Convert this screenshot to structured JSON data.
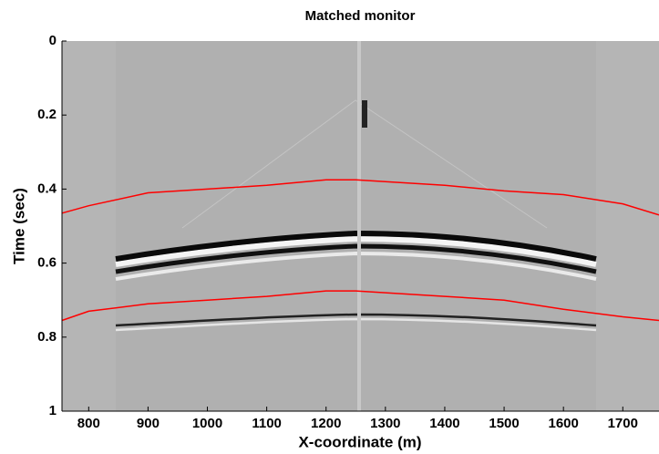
{
  "chart_data": {
    "type": "seismic-section",
    "title": "Matched monitor",
    "x_label": "X-coordinate (m)",
    "y_label": "Time (sec)",
    "x": [
      755,
      800,
      900,
      1000,
      1100,
      1200,
      1250,
      1300,
      1400,
      1500,
      1600,
      1700,
      1761
    ],
    "series": [
      {
        "color": "#ff0000",
        "values": [
          0.465,
          0.445,
          0.41,
          0.4,
          0.39,
          0.375,
          0.375,
          0.38,
          0.39,
          0.405,
          0.415,
          0.44,
          0.47
        ]
      },
      {
        "color": "#ff0000",
        "values": [
          0.755,
          0.73,
          0.71,
          0.7,
          0.69,
          0.675,
          0.675,
          0.68,
          0.69,
          0.7,
          0.725,
          0.745,
          0.755
        ]
      }
    ],
    "xlim": [
      755,
      1761
    ],
    "ylim": [
      0,
      1
    ],
    "y_reversed": true,
    "xticks": [
      800,
      900,
      1000,
      1100,
      1200,
      1300,
      1400,
      1500,
      1600,
      1700
    ],
    "yticks": [
      0,
      0.2,
      0.4,
      0.6,
      0.8,
      1
    ]
  }
}
